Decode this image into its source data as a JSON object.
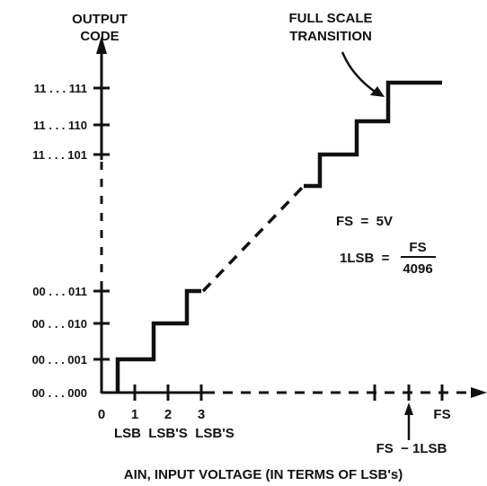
{
  "axes": {
    "y_title_line1": "OUTPUT",
    "y_title_line2": "CODE",
    "x_title": "AIN, INPUT VOLTAGE (IN TERMS OF LSB's)"
  },
  "y_codes": [
    "11 . . . 111",
    "11 . . . 110",
    "11 . . . 101",
    "00 . . . 011",
    "00 . . . 010",
    "00 . . . 001",
    "00 . . . 000"
  ],
  "x_ticks": {
    "zero": "0",
    "one": "1",
    "two": "2",
    "three": "3",
    "fs": "FS",
    "lsb": "LSB",
    "lsbs2": "LSB'S",
    "lsbs3": "LSB'S",
    "fs_minus": "FS  − 1LSB"
  },
  "annotations": {
    "full_scale_line1": "FULL SCALE",
    "full_scale_line2": "TRANSITION",
    "fs_eq": "FS  =  5V",
    "one_lsb": "1LSB  =",
    "frac_num": "FS",
    "frac_den": "4096"
  },
  "colors": {
    "ink": "#111111",
    "background": "#ffffff"
  }
}
